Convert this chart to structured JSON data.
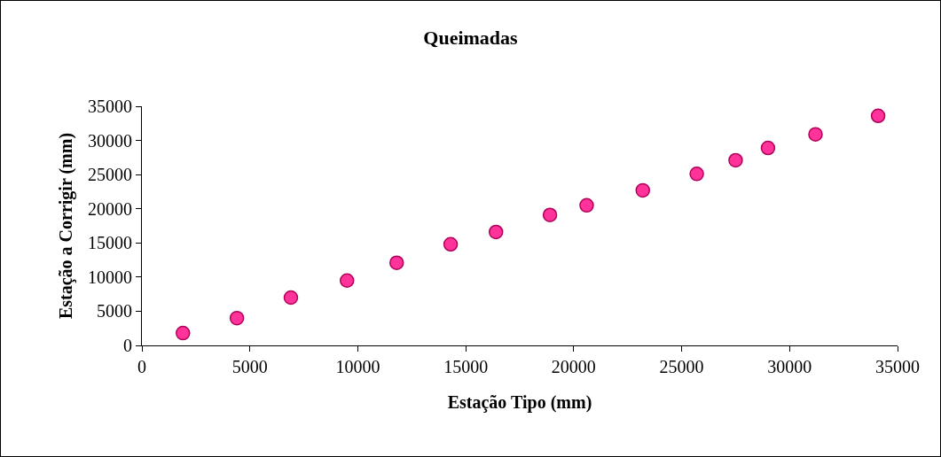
{
  "chart_data": {
    "type": "scatter",
    "title": "Queimadas",
    "xlabel": "Estação Tipo (mm)",
    "ylabel": "Estação a Corrigir (mm)",
    "x": [
      1900,
      4400,
      6900,
      9500,
      11800,
      14300,
      16400,
      18900,
      20600,
      23200,
      25700,
      27500,
      29000,
      31200,
      34100
    ],
    "values": [
      1800,
      4000,
      7000,
      9500,
      12100,
      14800,
      16600,
      19100,
      20500,
      22700,
      25100,
      27100,
      28900,
      30900,
      33600
    ],
    "color": "#ff3399",
    "marker": "circle",
    "grid": false,
    "xlim": [
      0,
      35000
    ],
    "xticks": [
      0,
      5000,
      10000,
      15000,
      20000,
      25000,
      30000,
      35000
    ],
    "ylim": [
      0,
      35000
    ],
    "yticks": [
      0,
      5000,
      10000,
      15000,
      20000,
      25000,
      30000,
      35000
    ]
  }
}
